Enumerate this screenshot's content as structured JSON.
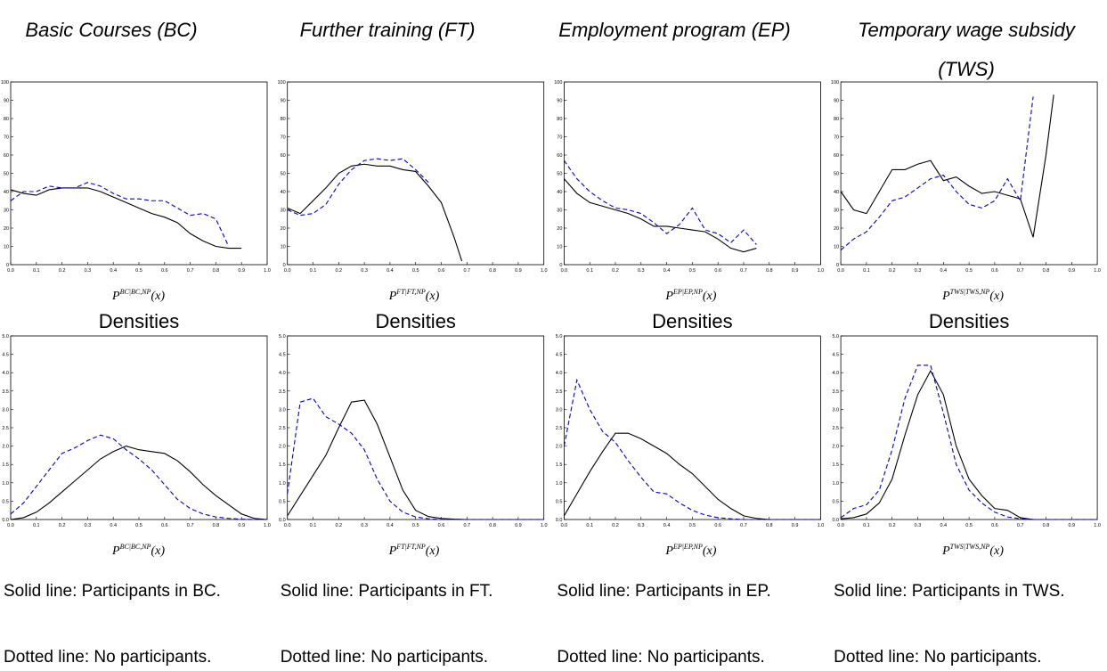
{
  "chart_data": [
    {
      "type": "line",
      "title": "Basic Courses (BC)",
      "xlabel": {
        "base": "P",
        "sup": "BC|BC,NP",
        "tail": "(x)"
      },
      "x": [
        0,
        0.05,
        0.1,
        0.15,
        0.2,
        0.25,
        0.3,
        0.35,
        0.4,
        0.45,
        0.5,
        0.55,
        0.6,
        0.65,
        0.7,
        0.75,
        0.8,
        0.85,
        0.9
      ],
      "xlim": [
        0,
        1
      ],
      "ylim": [
        0,
        100
      ],
      "xticks": [
        {
          "value": 0,
          "label": "0.0"
        },
        0.1,
        0.2,
        0.3,
        0.4,
        0.5,
        0.6,
        0.7,
        0.8,
        0.9,
        {
          "value": 1,
          "label": "1.0"
        }
      ],
      "yticks": [
        0,
        10,
        20,
        30,
        40,
        50,
        60,
        70,
        80,
        90,
        100
      ],
      "series": [
        {
          "color": "#000000",
          "style": "solid",
          "values": [
            41,
            39,
            38,
            41,
            42,
            42,
            42,
            40,
            37,
            34,
            31,
            28,
            26,
            23,
            17,
            13,
            10,
            9,
            9
          ]
        },
        {
          "color": "#0000cc",
          "style": "dashed",
          "values": [
            35,
            40,
            40,
            43,
            42,
            42,
            45,
            43,
            39,
            36,
            36,
            35,
            35,
            31,
            27,
            28,
            25,
            10,
            null
          ]
        }
      ]
    },
    {
      "type": "line",
      "title": "Further training (FT)",
      "xlabel": {
        "base": "P",
        "sup": "FT|FT,NP",
        "tail": "(x)"
      },
      "x": [
        0,
        0.05,
        0.1,
        0.15,
        0.2,
        0.25,
        0.3,
        0.35,
        0.4,
        0.45,
        0.5,
        0.55,
        0.6,
        0.65,
        0.68
      ],
      "xlim": [
        0,
        1
      ],
      "ylim": [
        0,
        100
      ],
      "xticks": [
        {
          "value": 0,
          "label": "0.0"
        },
        0.1,
        0.2,
        0.3,
        0.4,
        0.5,
        0.6,
        0.7,
        0.8,
        0.9,
        {
          "value": 1,
          "label": "1.0"
        }
      ],
      "yticks": [
        0,
        10,
        20,
        30,
        40,
        50,
        60,
        70,
        80,
        90,
        100
      ],
      "series": [
        {
          "color": "#000000",
          "style": "solid",
          "values": [
            31,
            28,
            35,
            42,
            50,
            54,
            55,
            54,
            54,
            52,
            51,
            43,
            34,
            15,
            2
          ]
        },
        {
          "color": "#0000cc",
          "style": "dashed",
          "values": [
            30,
            27,
            28,
            33,
            44,
            52,
            57,
            58,
            57,
            58,
            52,
            45,
            null,
            null,
            null
          ]
        }
      ]
    },
    {
      "type": "line",
      "title": "Employment program (EP)",
      "xlabel": {
        "base": "P",
        "sup": "EP|EP,NP",
        "tail": "(x)"
      },
      "x": [
        0,
        0.05,
        0.1,
        0.15,
        0.2,
        0.25,
        0.3,
        0.35,
        0.4,
        0.45,
        0.5,
        0.55,
        0.6,
        0.65,
        0.7,
        0.75
      ],
      "xlim": [
        0,
        1
      ],
      "ylim": [
        0,
        100
      ],
      "xticks": [
        {
          "value": 0,
          "label": "0.0"
        },
        0.1,
        0.2,
        0.3,
        0.4,
        0.5,
        0.6,
        0.7,
        0.8,
        0.9,
        {
          "value": 1,
          "label": "1.0"
        }
      ],
      "yticks": [
        0,
        10,
        20,
        30,
        40,
        50,
        60,
        70,
        80,
        90,
        100
      ],
      "series": [
        {
          "color": "#000000",
          "style": "solid",
          "values": [
            47,
            39,
            34,
            32,
            30,
            28,
            25,
            21,
            21,
            20,
            19,
            18,
            14,
            9,
            7,
            9
          ]
        },
        {
          "color": "#0000cc",
          "style": "dashed",
          "values": [
            57,
            47,
            40,
            35,
            31,
            30,
            28,
            23,
            17,
            22,
            31,
            19,
            17,
            12,
            19,
            11
          ]
        }
      ]
    },
    {
      "type": "line",
      "title": "Temporary wage subsidy (TWS)",
      "xlabel": {
        "base": "P",
        "sup": "TWS|TWS,NP",
        "tail": "(x)"
      },
      "x": [
        0,
        0.05,
        0.1,
        0.15,
        0.2,
        0.25,
        0.3,
        0.35,
        0.4,
        0.45,
        0.5,
        0.55,
        0.6,
        0.65,
        0.7,
        0.75,
        0.8,
        0.83
      ],
      "xlim": [
        0,
        1
      ],
      "ylim": [
        0,
        100
      ],
      "xticks": [
        {
          "value": 0,
          "label": "0.0"
        },
        0.1,
        0.2,
        0.3,
        0.4,
        0.5,
        0.6,
        0.7,
        0.8,
        0.9,
        {
          "value": 1,
          "label": "1.0"
        }
      ],
      "yticks": [
        0,
        10,
        20,
        30,
        40,
        50,
        60,
        70,
        80,
        90,
        100
      ],
      "series": [
        {
          "color": "#000000",
          "style": "solid",
          "values": [
            40,
            30,
            28,
            40,
            52,
            52,
            55,
            57,
            46,
            48,
            43,
            39,
            40,
            38,
            36,
            15,
            60,
            93
          ]
        },
        {
          "color": "#0000cc",
          "style": "dashed",
          "values": [
            8,
            14,
            18,
            26,
            35,
            37,
            42,
            47,
            49,
            40,
            33,
            31,
            35,
            47,
            35,
            92,
            null,
            null
          ]
        }
      ]
    },
    {
      "type": "line",
      "title": "Densities",
      "xlabel": {
        "base": "P",
        "sup": "BC|BC,NP",
        "tail": "(x)"
      },
      "x": [
        0,
        0.05,
        0.1,
        0.15,
        0.2,
        0.25,
        0.3,
        0.35,
        0.4,
        0.45,
        0.5,
        0.55,
        0.6,
        0.65,
        0.7,
        0.75,
        0.8,
        0.85,
        0.9,
        0.95,
        1
      ],
      "xlim": [
        0,
        1
      ],
      "ylim": [
        0,
        5
      ],
      "xticks": [
        {
          "value": 0,
          "label": "0.0"
        },
        0.1,
        0.2,
        0.3,
        0.4,
        0.5,
        0.6,
        0.7,
        0.8,
        0.9,
        {
          "value": 1,
          "label": "1.0"
        }
      ],
      "yticks": [
        {
          "value": 0,
          "label": "0.0"
        },
        0.5,
        {
          "value": 1,
          "label": "1.0"
        },
        1.5,
        {
          "value": 2,
          "label": "2.0"
        },
        2.5,
        {
          "value": 3,
          "label": "3.0"
        },
        3.5,
        {
          "value": 4,
          "label": "4.0"
        },
        4.5,
        {
          "value": 5,
          "label": "5.0"
        }
      ],
      "series": [
        {
          "name": "Solid line: Participants in BC.",
          "color": "#000000",
          "style": "solid",
          "values": [
            0,
            0.05,
            0.2,
            0.45,
            0.75,
            1.05,
            1.35,
            1.65,
            1.85,
            2.0,
            1.9,
            1.85,
            1.8,
            1.6,
            1.3,
            0.95,
            0.65,
            0.4,
            0.15,
            0.03,
            0
          ]
        },
        {
          "name": "Dotted line: No participants.",
          "color": "#0000cc",
          "style": "dashed",
          "values": [
            0.15,
            0.45,
            0.9,
            1.35,
            1.8,
            1.95,
            2.15,
            2.3,
            2.2,
            1.9,
            1.65,
            1.35,
            0.95,
            0.55,
            0.3,
            0.15,
            0.07,
            0.03,
            0.01,
            0,
            0
          ]
        }
      ]
    },
    {
      "type": "line",
      "title": "Densities",
      "xlabel": {
        "base": "P",
        "sup": "FT|FT,NP",
        "tail": "(x)"
      },
      "x": [
        0,
        0.05,
        0.1,
        0.15,
        0.2,
        0.25,
        0.3,
        0.35,
        0.4,
        0.45,
        0.5,
        0.55,
        0.6,
        0.65,
        0.7,
        0.75,
        0.8,
        0.85,
        0.9,
        0.95,
        1
      ],
      "xlim": [
        0,
        1
      ],
      "ylim": [
        0,
        5
      ],
      "xticks": [
        {
          "value": 0,
          "label": "0.0"
        },
        0.1,
        0.2,
        0.3,
        0.4,
        0.5,
        0.6,
        0.7,
        0.8,
        0.9,
        {
          "value": 1,
          "label": "1.0"
        }
      ],
      "yticks": [
        {
          "value": 0,
          "label": "0.0"
        },
        0.5,
        {
          "value": 1,
          "label": "1.0"
        },
        1.5,
        {
          "value": 2,
          "label": "2.0"
        },
        2.5,
        {
          "value": 3,
          "label": "3.0"
        },
        3.5,
        {
          "value": 4,
          "label": "4.0"
        },
        4.5,
        {
          "value": 5,
          "label": "5.0"
        }
      ],
      "series": [
        {
          "name": "Solid line: Participants in FT.",
          "color": "#000000",
          "style": "solid",
          "values": [
            0.1,
            0.65,
            1.2,
            1.75,
            2.5,
            3.2,
            3.25,
            2.6,
            1.7,
            0.8,
            0.25,
            0.08,
            0.03,
            0.01,
            0,
            0,
            0,
            0,
            0,
            0,
            0
          ]
        },
        {
          "name": "Dotted line: No participants.",
          "color": "#0000cc",
          "style": "dashed",
          "values": [
            0.7,
            3.2,
            3.3,
            2.8,
            2.6,
            2.35,
            1.9,
            1.1,
            0.5,
            0.2,
            0.07,
            0.02,
            0,
            0,
            0,
            0,
            0,
            0,
            0,
            0,
            0
          ]
        }
      ]
    },
    {
      "type": "line",
      "title": "Densities",
      "xlabel": {
        "base": "P",
        "sup": "EP|EP,NP",
        "tail": "(x)"
      },
      "x": [
        0,
        0.05,
        0.1,
        0.15,
        0.2,
        0.25,
        0.3,
        0.35,
        0.4,
        0.45,
        0.5,
        0.55,
        0.6,
        0.65,
        0.7,
        0.75,
        0.8,
        0.85,
        0.9,
        0.95,
        1
      ],
      "xlim": [
        0,
        1
      ],
      "ylim": [
        0,
        5
      ],
      "xticks": [
        {
          "value": 0,
          "label": "0.0"
        },
        0.1,
        0.2,
        0.3,
        0.4,
        0.5,
        0.6,
        0.7,
        0.8,
        0.9,
        {
          "value": 1,
          "label": "1.0"
        }
      ],
      "yticks": [
        {
          "value": 0,
          "label": "0.0"
        },
        0.5,
        {
          "value": 1,
          "label": "1.0"
        },
        1.5,
        {
          "value": 2,
          "label": "2.0"
        },
        2.5,
        {
          "value": 3,
          "label": "3.0"
        },
        3.5,
        {
          "value": 4,
          "label": "4.0"
        },
        4.5,
        {
          "value": 5,
          "label": "5.0"
        }
      ],
      "series": [
        {
          "name": "Solid line: Participants in EP.",
          "color": "#000000",
          "style": "solid",
          "values": [
            0.1,
            0.7,
            1.3,
            1.85,
            2.35,
            2.35,
            2.2,
            2.0,
            1.8,
            1.5,
            1.25,
            0.9,
            0.55,
            0.3,
            0.1,
            0.03,
            0,
            0,
            0,
            0,
            0
          ]
        },
        {
          "name": "Dotted line: No participants.",
          "color": "#0000cc",
          "style": "dashed",
          "values": [
            2.0,
            3.8,
            3.0,
            2.4,
            2.1,
            1.6,
            1.15,
            0.75,
            0.7,
            0.45,
            0.25,
            0.12,
            0.05,
            0.02,
            0,
            0,
            0,
            0,
            0,
            0,
            0
          ]
        }
      ]
    },
    {
      "type": "line",
      "title": "Densities",
      "xlabel": {
        "base": "P",
        "sup": "TWS|TWS,NP",
        "tail": "(x)"
      },
      "x": [
        0,
        0.05,
        0.1,
        0.15,
        0.2,
        0.25,
        0.3,
        0.35,
        0.4,
        0.45,
        0.5,
        0.55,
        0.6,
        0.65,
        0.7,
        0.75,
        0.8,
        0.85,
        0.9,
        0.95,
        1
      ],
      "xlim": [
        0,
        1
      ],
      "ylim": [
        0,
        5
      ],
      "xticks": [
        {
          "value": 0,
          "label": "0.0"
        },
        0.1,
        0.2,
        0.3,
        0.4,
        0.5,
        0.6,
        0.7,
        0.8,
        0.9,
        {
          "value": 1,
          "label": "1.0"
        }
      ],
      "yticks": [
        {
          "value": 0,
          "label": "0.0"
        },
        0.5,
        {
          "value": 1,
          "label": "1.0"
        },
        1.5,
        {
          "value": 2,
          "label": "2.0"
        },
        2.5,
        {
          "value": 3,
          "label": "3.0"
        },
        3.5,
        {
          "value": 4,
          "label": "4.0"
        },
        4.5,
        {
          "value": 5,
          "label": "5.0"
        }
      ],
      "series": [
        {
          "name": "Solid line: Participants in TWS.",
          "color": "#000000",
          "style": "solid",
          "values": [
            0.02,
            0.05,
            0.15,
            0.45,
            1.1,
            2.3,
            3.4,
            4.05,
            3.4,
            2.0,
            1.1,
            0.65,
            0.3,
            0.25,
            0.05,
            0,
            0,
            0,
            0,
            0,
            0
          ]
        },
        {
          "name": "Dotted line: No participants.",
          "color": "#0000cc",
          "style": "dashed",
          "values": [
            0.05,
            0.3,
            0.4,
            0.8,
            1.9,
            3.3,
            4.2,
            4.2,
            2.9,
            1.5,
            0.8,
            0.45,
            0.2,
            0.07,
            0.02,
            0,
            0,
            0,
            0,
            0,
            0
          ]
        }
      ]
    }
  ]
}
